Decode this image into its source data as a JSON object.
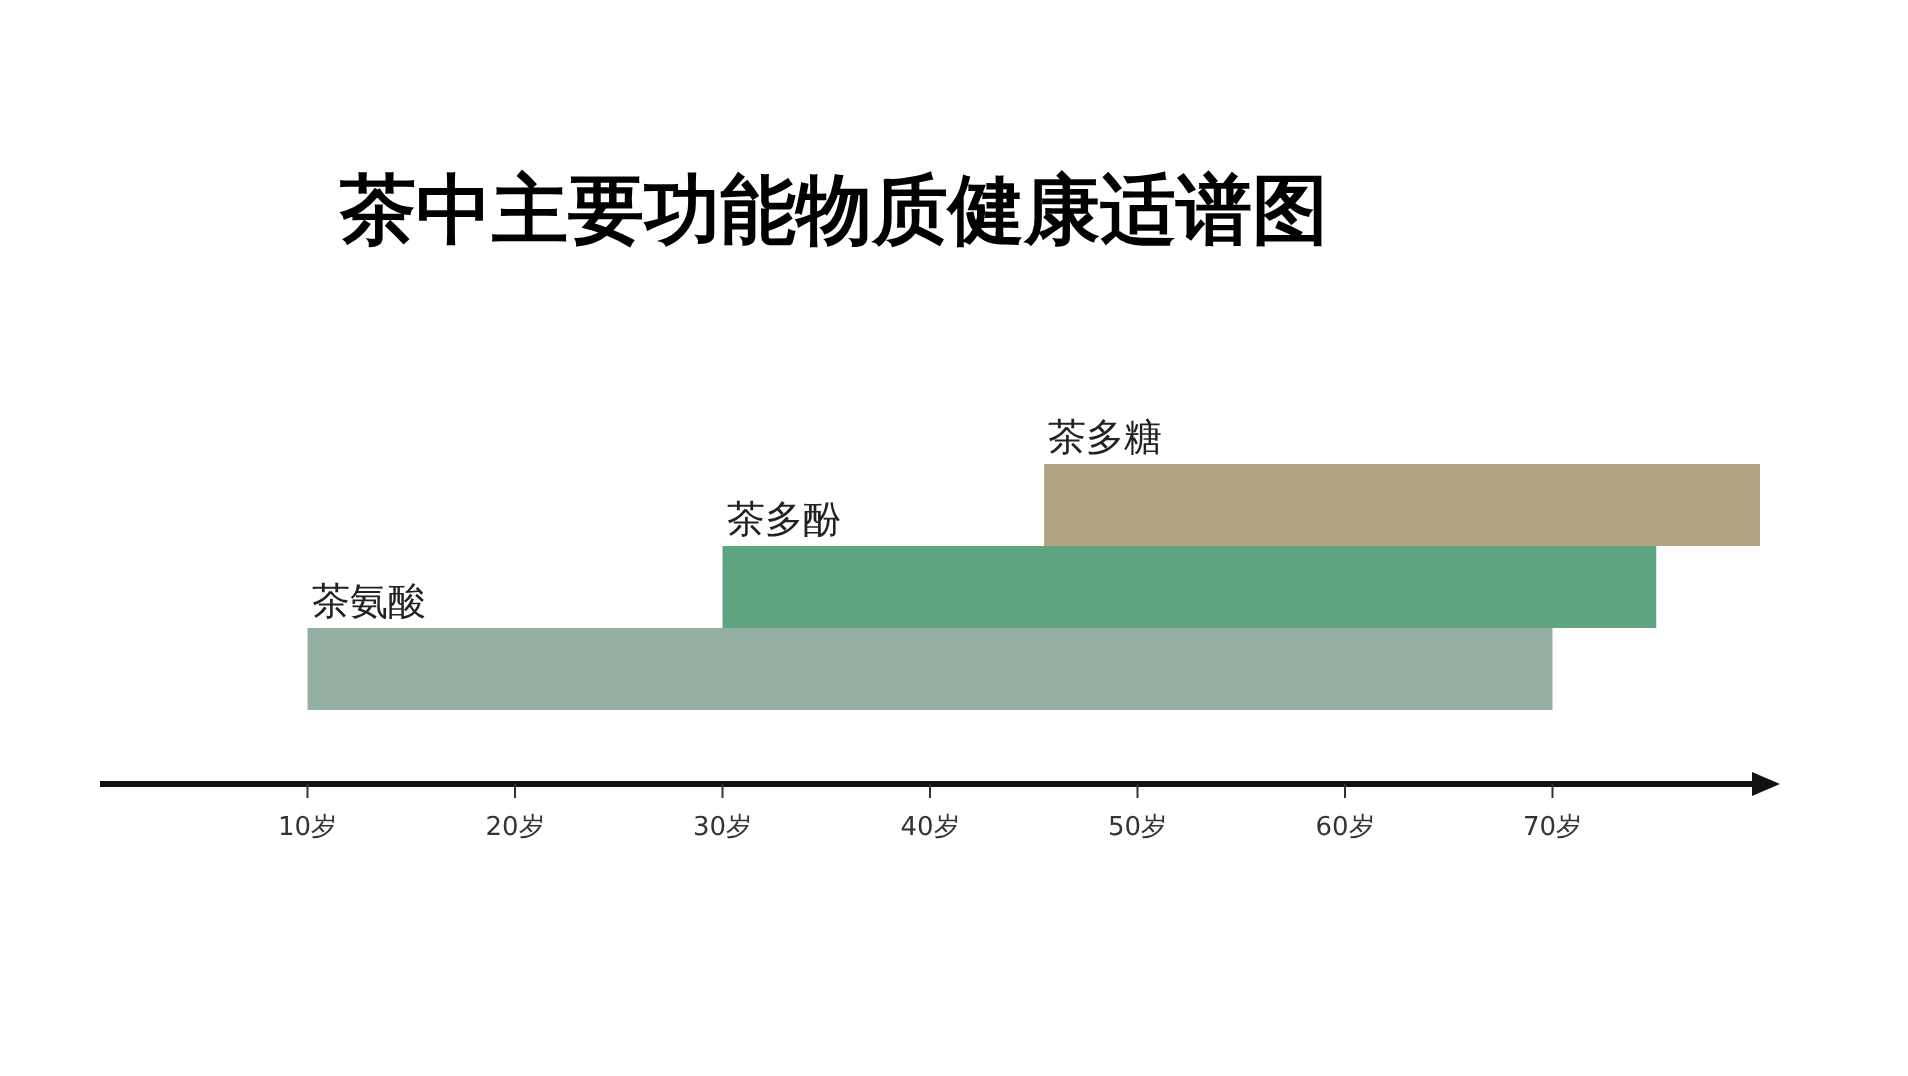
{
  "chart_data": {
    "type": "bar",
    "orientation": "horizontal",
    "title": "茶中主要功能物质健康适谱图",
    "categories": [
      null,
      null,
      null
    ],
    "base": [
      45.5,
      30,
      10
    ],
    "values": [
      34.5,
      45,
      60
    ],
    "colors": [
      "#b0a283",
      "#5fa582",
      "#93b0a2"
    ],
    "annotations": [
      "茶多糖",
      "茶多酚",
      "茶氨酸"
    ],
    "xlim": [
      0,
      80
    ],
    "xticks": [
      {
        "value": 10,
        "label": "10岁"
      },
      {
        "value": 20,
        "label": "20岁"
      },
      {
        "value": 30,
        "label": "30岁"
      },
      {
        "value": 40,
        "label": "40岁"
      },
      {
        "value": 50,
        "label": "50岁"
      },
      {
        "value": 60,
        "label": "60岁"
      },
      {
        "value": 70,
        "label": "70岁"
      }
    ],
    "grid": false
  }
}
